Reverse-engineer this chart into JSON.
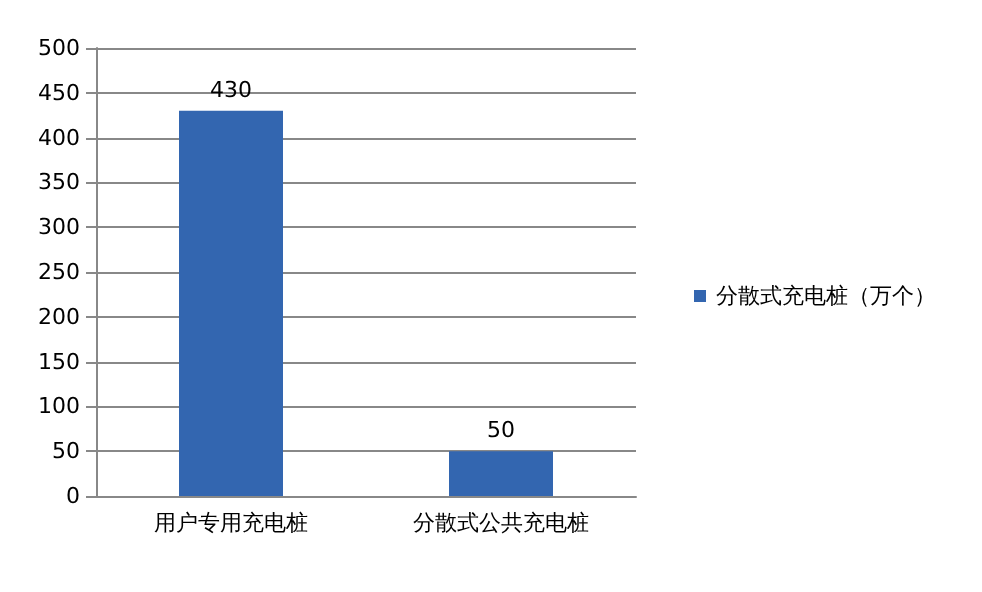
{
  "chart_data": {
    "type": "bar",
    "categories": [
      "用户专用充电桩",
      "分散式公共充电桩"
    ],
    "series": [
      {
        "name": "分散式充电桩（万个）",
        "color": "#3366b0",
        "values": [
          430,
          50
        ]
      }
    ],
    "ylim": [
      0,
      500
    ],
    "yticks": [
      0,
      50,
      100,
      150,
      200,
      250,
      300,
      350,
      400,
      450,
      500
    ],
    "grid": "y",
    "legend": "right",
    "data_labels": true
  }
}
